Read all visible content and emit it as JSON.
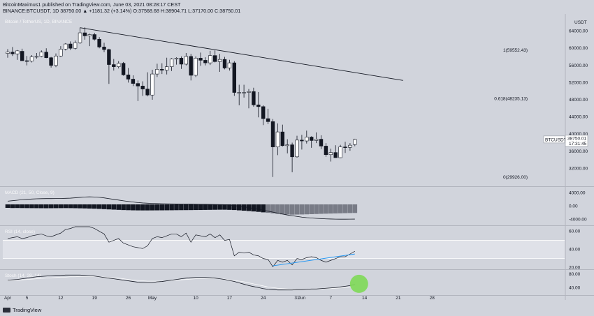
{
  "header": {
    "line1": "BitcoinMaximus1 published on TradingView.com, June 03, 2021 08:28:17 CEST",
    "line2": "BINANCE:BTCUSDT, 1D  38750.00  ▲ +1181.32 (+3.14%)  O:37568.68  H:38904.71  L:37170.00  C:38750.01"
  },
  "footer": {
    "brand": "TradingView"
  },
  "colors": {
    "background": "#d1d4dc",
    "up_candle": "#ffffff",
    "down_candle": "#131722",
    "trendline": "#131722",
    "rsi_trendline": "#2196f3",
    "highlight": "#7ed957"
  },
  "chart_data": [
    {
      "type": "candlestick",
      "title": "Bitcoin / TetherUS, 1D, BINANCE",
      "currency": "USDT",
      "ylim": [
        28000,
        68000
      ],
      "yticks": [
        32000,
        36000,
        40000,
        44000,
        48000,
        52000,
        56000,
        60000,
        64000
      ],
      "xticks": [
        {
          "label": "Apr",
          "day": 0
        },
        {
          "label": "5",
          "day": 4
        },
        {
          "label": "12",
          "day": 11
        },
        {
          "label": "19",
          "day": 18
        },
        {
          "label": "26",
          "day": 25
        },
        {
          "label": "May",
          "day": 30
        },
        {
          "label": "10",
          "day": 39
        },
        {
          "label": "17",
          "day": 46
        },
        {
          "label": "24",
          "day": 53
        },
        {
          "label": "31",
          "day": 60
        },
        {
          "label": "Jun",
          "day": 61
        },
        {
          "label": "7",
          "day": 67
        },
        {
          "label": "14",
          "day": 74
        },
        {
          "label": "21",
          "day": 81
        },
        {
          "label": "28",
          "day": 88
        }
      ],
      "candles": [
        [
          58800,
          59800,
          57800,
          59100
        ],
        [
          59100,
          60300,
          58200,
          58700
        ],
        [
          58700,
          59600,
          57300,
          59400
        ],
        [
          59300,
          59900,
          57100,
          57100
        ],
        [
          57100,
          58200,
          56000,
          57000
        ],
        [
          57000,
          58400,
          56700,
          58000
        ],
        [
          58000,
          58900,
          57600,
          58100
        ],
        [
          58100,
          59500,
          57900,
          59100
        ],
        [
          59100,
          60000,
          57700,
          57800
        ],
        [
          57800,
          58000,
          55500,
          56000
        ],
        [
          56000,
          58800,
          55600,
          58200
        ],
        [
          58200,
          60500,
          58000,
          59800
        ],
        [
          59800,
          61200,
          59500,
          61000
        ],
        [
          61000,
          61600,
          59600,
          60000
        ],
        [
          60000,
          61800,
          59700,
          61300
        ],
        [
          61300,
          64800,
          61000,
          63600
        ],
        [
          63600,
          64900,
          62000,
          62900
        ],
        [
          62900,
          63400,
          60500,
          63200
        ],
        [
          63200,
          63600,
          61800,
          62100
        ],
        [
          62100,
          62600,
          60000,
          60300
        ],
        [
          60300,
          61300,
          59100,
          59700
        ],
        [
          59700,
          59900,
          51700,
          56200
        ],
        [
          56200,
          57500,
          54800,
          55700
        ],
        [
          55700,
          57000,
          55300,
          56500
        ],
        [
          56500,
          56800,
          53600,
          53800
        ],
        [
          53800,
          55400,
          52000,
          52800
        ],
        [
          52800,
          53700,
          51200,
          51800
        ],
        [
          51800,
          52500,
          47700,
          51200
        ],
        [
          51200,
          52300,
          48900,
          50500
        ],
        [
          50500,
          54400,
          48800,
          49100
        ],
        [
          49100,
          55000,
          48000,
          54000
        ],
        [
          54000,
          56400,
          53300,
          55100
        ],
        [
          55100,
          56500,
          54000,
          54900
        ],
        [
          54900,
          57800,
          53900,
          55700
        ],
        [
          55700,
          57700,
          54700,
          57500
        ],
        [
          57500,
          57900,
          56200,
          57700
        ],
        [
          57700,
          58100,
          55200,
          56300
        ],
        [
          56300,
          58900,
          56000,
          58100
        ],
        [
          58100,
          58700,
          52500,
          53700
        ],
        [
          53700,
          58100,
          53300,
          57700
        ],
        [
          57700,
          59000,
          55900,
          57200
        ],
        [
          57200,
          57900,
          56000,
          56600
        ],
        [
          56600,
          59400,
          56100,
          58300
        ],
        [
          58300,
          59500,
          56700,
          56900
        ],
        [
          56900,
          58700,
          54500,
          57400
        ],
        [
          57400,
          58000,
          55100,
          55400
        ],
        [
          55400,
          57300,
          54800,
          56600
        ],
        [
          56600,
          57000,
          48900,
          49700
        ],
        [
          49700,
          51500,
          46700,
          49700
        ],
        [
          49700,
          51500,
          48500,
          49700
        ],
        [
          49700,
          50500,
          46000,
          49900
        ],
        [
          49900,
          50800,
          46400,
          46800
        ],
        [
          46800,
          49800,
          43900,
          46400
        ],
        [
          46400,
          46700,
          42100,
          43600
        ],
        [
          43600,
          45900,
          42300,
          42900
        ],
        [
          42900,
          43500,
          30000,
          37000
        ],
        [
          37000,
          42500,
          35100,
          40500
        ],
        [
          40500,
          42200,
          37100,
          37300
        ],
        [
          37300,
          38800,
          35500,
          37500
        ],
        [
          37500,
          38000,
          31100,
          34700
        ],
        [
          34700,
          39600,
          34500,
          38600
        ],
        [
          38600,
          39800,
          36400,
          38400
        ],
        [
          38400,
          40800,
          37800,
          39300
        ],
        [
          39300,
          39500,
          36800,
          38500
        ],
        [
          38500,
          40400,
          37900,
          38800
        ],
        [
          38800,
          39700,
          36500,
          37200
        ],
        [
          37200,
          37900,
          34700,
          35200
        ],
        [
          35200,
          36600,
          33600,
          35700
        ],
        [
          35700,
          37400,
          34500,
          34500
        ],
        [
          34500,
          37500,
          34400,
          37000
        ],
        [
          37000,
          38200,
          35600,
          36900
        ],
        [
          36900,
          37900,
          36100,
          37400
        ],
        [
          37568.68,
          38904.71,
          37170.0,
          38750.01
        ]
      ],
      "trendline": {
        "from": {
          "day": 15,
          "price": 64800
        },
        "to": {
          "day": 82,
          "price": 52500
        }
      },
      "fibonacci": [
        {
          "label": "1(59552.43)",
          "price": 59552.43
        },
        {
          "label": "0.618(48235.13)",
          "price": 48235.13
        },
        {
          "label": "0(29926.00)",
          "price": 29926.0
        }
      ],
      "price_label": {
        "symbol": "BTCUSDT",
        "value": "38750.01",
        "countdown": "17:31:45"
      }
    },
    {
      "type": "histogram",
      "title": "MACD (21, 50, Close, 9)",
      "ylim": [
        -5600,
        5600
      ],
      "yticks": [
        {
          "label": "4000.00",
          "value": 4000
        },
        {
          "label": "0.00",
          "value": 0
        },
        {
          "label": "-4000.00",
          "value": -4000
        }
      ],
      "histogram": [
        0,
        50,
        40,
        60,
        70,
        80,
        90,
        100,
        110,
        100,
        90,
        80,
        70,
        80,
        100,
        130,
        160,
        200,
        240,
        300,
        380,
        460,
        530,
        600,
        660,
        700,
        740,
        760,
        770,
        770,
        760,
        750,
        740,
        730,
        720,
        700,
        690,
        680,
        670,
        650,
        640,
        620,
        600,
        580,
        560,
        560,
        600,
        650,
        750,
        850,
        950,
        1080,
        1200,
        1350,
        1500,
        1650,
        1800,
        1950,
        2000,
        2050,
        2020,
        1990,
        1950,
        1900,
        1850,
        1800,
        1760,
        1720,
        1680,
        1640,
        1600,
        1570,
        1540
      ],
      "macd_line": [
        1500,
        1650,
        1800,
        1950,
        2050,
        2150,
        2220,
        2260,
        2280,
        2290,
        2300,
        2320,
        2360,
        2420,
        2520,
        2650,
        2780,
        2820,
        2780,
        2660,
        2500,
        2280,
        2050,
        1840,
        1620,
        1420,
        1250,
        1080,
        960,
        880,
        820,
        780,
        740,
        710,
        680,
        650,
        630,
        610,
        600,
        580,
        560,
        540,
        510,
        490,
        470,
        440,
        350,
        180,
        -20,
        -220,
        -460,
        -720,
        -980,
        -1240,
        -1520,
        -1820,
        -2120,
        -2400,
        -2680,
        -2900,
        -3120,
        -3320,
        -3480,
        -3600,
        -3700,
        -3780,
        -3850,
        -3900,
        -3930,
        -3950,
        -3950,
        -3940,
        -3920
      ]
    },
    {
      "type": "line",
      "title": "RSI (14, close)",
      "ylim": [
        19,
        65
      ],
      "yticks": [
        {
          "label": "60.00",
          "value": 60
        },
        {
          "label": "40.00",
          "value": 40
        },
        {
          "label": "20.00",
          "value": 20
        }
      ],
      "band": [
        30,
        50
      ],
      "values": [
        52,
        53,
        54,
        52,
        53,
        55,
        56,
        57,
        55,
        54,
        56,
        58,
        62,
        63,
        66,
        69,
        68,
        67,
        63,
        60,
        57,
        48,
        50,
        52,
        47,
        45,
        43,
        42,
        41,
        44,
        52,
        54,
        53,
        55,
        57,
        57,
        54,
        58,
        48,
        56,
        55,
        54,
        57,
        53,
        56,
        50,
        51,
        33,
        37,
        36,
        37,
        34,
        33,
        30,
        29,
        21,
        28,
        26,
        28,
        23,
        30,
        29,
        31,
        32,
        31,
        28,
        26,
        28,
        30,
        32,
        32,
        35,
        38
      ],
      "trendline": {
        "from": {
          "day": 55,
          "value": 22
        },
        "to": {
          "day": 72,
          "value": 35
        }
      }
    },
    {
      "type": "line",
      "title": "Stoch (14, 28, 14)",
      "ylim": [
        20,
        90
      ],
      "yticks": [
        {
          "label": "80.00",
          "value": 80
        },
        {
          "label": "40.00",
          "value": 40
        }
      ],
      "values": [
        62,
        63,
        64,
        66,
        68,
        70,
        72,
        73,
        74,
        75,
        76,
        76,
        77,
        77,
        77,
        77,
        76,
        75,
        74,
        72,
        70,
        68,
        66,
        64,
        62,
        60,
        58,
        56,
        55,
        55,
        55,
        57,
        58,
        60,
        62,
        64,
        66,
        68,
        69,
        70,
        70,
        70,
        69,
        68,
        66,
        64,
        61,
        58,
        54,
        50,
        46,
        43,
        40,
        37,
        35,
        34,
        33,
        33,
        33,
        33,
        34,
        34,
        35,
        36,
        36,
        37,
        38,
        39,
        40,
        42,
        44,
        46,
        49
      ],
      "signal": [
        60,
        61,
        62,
        63,
        64,
        65,
        66,
        67,
        68,
        69,
        70,
        71,
        71,
        72,
        72,
        73,
        73,
        73,
        73,
        72,
        71,
        70,
        69,
        68,
        66,
        64,
        62,
        61,
        60,
        59,
        59,
        59,
        59,
        60,
        61,
        62,
        63,
        64,
        65,
        66,
        66,
        67,
        67,
        67,
        66,
        65,
        63,
        61,
        59,
        57,
        54,
        51,
        48,
        45,
        42,
        40,
        38,
        37,
        36,
        35,
        35,
        35,
        35,
        36,
        36,
        36,
        37,
        37,
        38,
        39,
        40,
        41,
        43
      ],
      "highlight": {
        "day": 72,
        "value": 49
      }
    }
  ]
}
